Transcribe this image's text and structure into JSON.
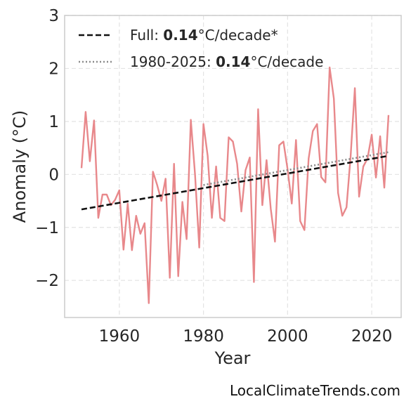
{
  "chart_data": {
    "type": "line",
    "xlabel": "Year",
    "ylabel": "Anomaly (°C)",
    "xlim": [
      1947,
      2027
    ],
    "ylim": [
      -2.7,
      3.0
    ],
    "x_ticks": [
      1960,
      1980,
      2000,
      2020
    ],
    "y_ticks": [
      3,
      2,
      1,
      0,
      -1,
      -2
    ],
    "y_tick_labels": [
      "3",
      "2",
      "1",
      "0",
      "−1",
      "−2"
    ],
    "grid": true,
    "legend_position": "top-left",
    "series": [
      {
        "style": "solid",
        "color": "#e8888b",
        "x": [
          1951,
          1952,
          1953,
          1954,
          1955,
          1956,
          1957,
          1958,
          1959,
          1960,
          1961,
          1962,
          1963,
          1964,
          1965,
          1966,
          1967,
          1968,
          1969,
          1970,
          1971,
          1972,
          1973,
          1974,
          1975,
          1976,
          1977,
          1978,
          1979,
          1980,
          1981,
          1982,
          1983,
          1984,
          1985,
          1986,
          1987,
          1988,
          1989,
          1990,
          1991,
          1992,
          1993,
          1994,
          1995,
          1996,
          1997,
          1998,
          1999,
          2000,
          2001,
          2002,
          2003,
          2004,
          2005,
          2006,
          2007,
          2008,
          2009,
          2010,
          2011,
          2012,
          2013,
          2014,
          2015,
          2016,
          2017,
          2018,
          2019,
          2020,
          2021,
          2022,
          2023,
          2024
        ],
        "y": [
          0.12,
          1.18,
          0.25,
          1.02,
          -0.82,
          -0.38,
          -0.38,
          -0.58,
          -0.48,
          -0.3,
          -1.42,
          -0.55,
          -1.43,
          -0.78,
          -1.12,
          -0.92,
          -2.43,
          0.05,
          -0.2,
          -0.5,
          -0.08,
          -1.95,
          0.2,
          -1.92,
          -0.52,
          -1.22,
          1.03,
          0.0,
          -1.38,
          0.95,
          0.35,
          -0.82,
          0.15,
          -0.82,
          -0.88,
          0.7,
          0.62,
          0.2,
          -0.7,
          0.08,
          0.32,
          -2.03,
          1.23,
          -0.58,
          0.27,
          -0.65,
          -1.27,
          0.55,
          0.62,
          0.1,
          -0.55,
          0.65,
          -0.88,
          -1.05,
          0.3,
          0.82,
          0.95,
          -0.05,
          -0.15,
          2.02,
          1.43,
          -0.35,
          -0.78,
          -0.62,
          0.35,
          1.63,
          -0.42,
          0.15,
          0.3,
          0.75,
          -0.06,
          0.72,
          -0.25,
          1.12
        ]
      },
      {
        "style": "dashed",
        "color": "#111111",
        "legend": {
          "prefix": "Full: ",
          "value": "0.14",
          "suffix": "°C/decade*"
        },
        "x": [
          1951,
          2024
        ],
        "y": [
          -0.66,
          0.35
        ]
      },
      {
        "style": "dotted",
        "color": "#8c8c8c",
        "legend": {
          "prefix": "1980-2025: ",
          "value": "0.14",
          "suffix": "°C/decade"
        },
        "x": [
          1980,
          2024
        ],
        "y": [
          -0.2,
          0.42
        ]
      }
    ]
  },
  "credit": "LocalClimateTrends.com"
}
